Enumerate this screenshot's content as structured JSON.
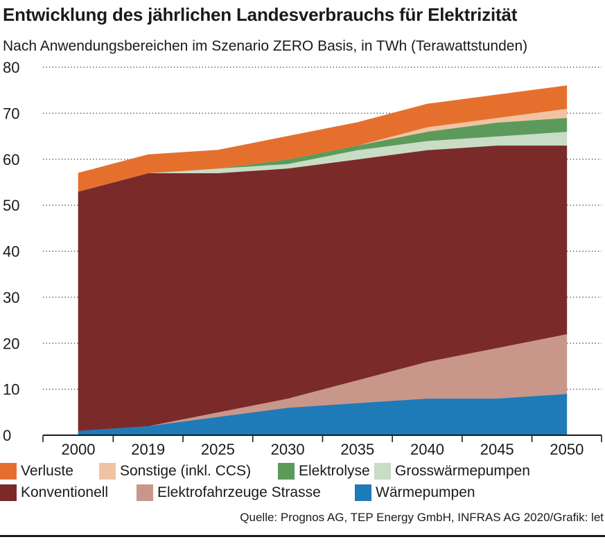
{
  "header": {
    "title": "Entwicklung des jährlichen Landesverbrauchs für Elektrizität",
    "subtitle": "Nach Anwendungsbereichen im Szenario ZERO Basis, in TWh (Terawattstunden)"
  },
  "footer": {
    "source": "Quelle: Prognos AG, TEP Energy GmbH, INFRAS AG 2020/Grafik: let"
  },
  "chart_data": {
    "type": "area",
    "stacked": true,
    "title": "Entwicklung des jährlichen Landesverbrauchs für Elektrizität",
    "subtitle": "Nach Anwendungsbereichen im Szenario ZERO Basis, in TWh (Terawattstunden)",
    "xlabel": "",
    "ylabel": "TWh",
    "categories": [
      "2000",
      "2019",
      "2025",
      "2030",
      "2035",
      "2040",
      "2045",
      "2050"
    ],
    "ylim": [
      0,
      80
    ],
    "yticks": [
      "0",
      "10",
      "20",
      "30",
      "40",
      "50",
      "60",
      "70",
      "80"
    ],
    "grid": "horizontal dotted",
    "legend_position": "bottom",
    "series": [
      {
        "name": "Wärmepumpen",
        "color": "#1f7ab8",
        "values": [
          1,
          2,
          4,
          6,
          7,
          8,
          8,
          9
        ]
      },
      {
        "name": "Elektrofahrzeuge Strasse",
        "color": "#c9978a",
        "values": [
          0,
          0,
          1,
          2,
          5,
          8,
          11,
          13
        ]
      },
      {
        "name": "Konventionell",
        "color": "#7b2a2a",
        "values": [
          52,
          55,
          52,
          50,
          48,
          46,
          44,
          41
        ]
      },
      {
        "name": "Grosswärmepumpen",
        "color": "#c9dcc6",
        "values": [
          0,
          0,
          1,
          1,
          2,
          2,
          2,
          3
        ]
      },
      {
        "name": "Elektrolyse",
        "color": "#5c9a5c",
        "values": [
          0,
          0,
          0,
          1,
          1,
          2,
          3,
          3
        ]
      },
      {
        "name": "Sonstige (inkl. CCS)",
        "color": "#f0c4a2",
        "values": [
          0,
          0,
          0,
          0,
          0,
          1,
          1,
          2
        ]
      },
      {
        "name": "Verluste",
        "color": "#e5702e",
        "values": [
          4,
          4,
          4,
          5,
          5,
          5,
          5,
          5
        ]
      }
    ],
    "legend_order": [
      "Verluste",
      "Sonstige (inkl. CCS)",
      "Elektrolyse",
      "Grosswärmepumpen",
      "Konventionell",
      "Elektrofahrzeuge Strasse",
      "Wärmepumpen"
    ]
  }
}
